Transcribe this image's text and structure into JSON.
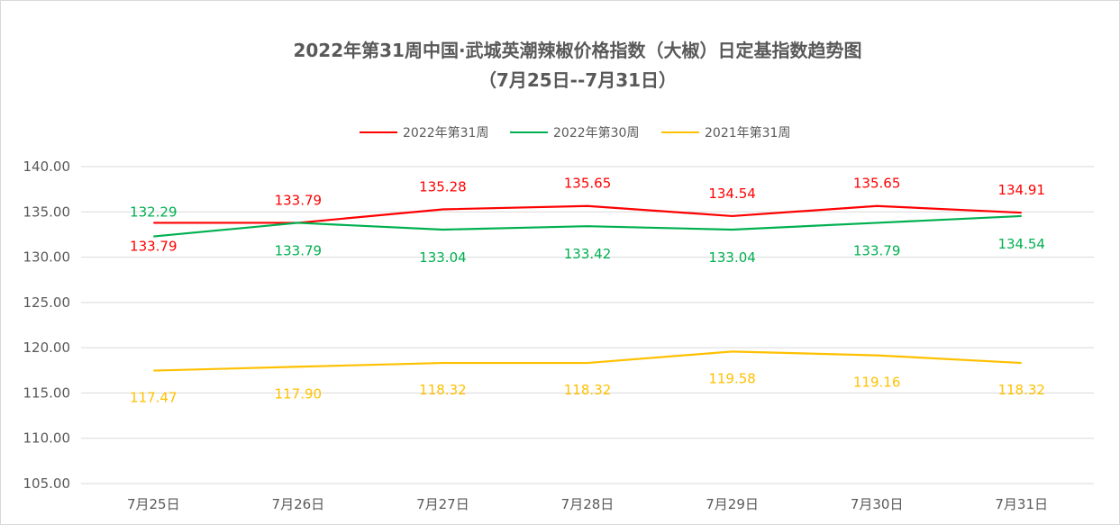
{
  "chart_data": {
    "type": "line",
    "title": "2022年第31周中国·武城英潮辣椒价格指数（大椒）日定基指数趋势图",
    "subtitle": "（7月25日--7月31日）",
    "categories": [
      "7月25日",
      "7月26日",
      "7月27日",
      "7月28日",
      "7月29日",
      "7月30日",
      "7月31日"
    ],
    "ylim": [
      105,
      140
    ],
    "ytick_labels": [
      "140.00",
      "135.00",
      "130.00",
      "125.00",
      "120.00",
      "115.00",
      "110.00",
      "105.00"
    ],
    "grid": true,
    "legend_position": "top",
    "series": [
      {
        "name": "2022年第31周",
        "color": "#ff0000",
        "values": [
          133.79,
          133.79,
          135.28,
          135.65,
          134.54,
          135.65,
          134.91
        ],
        "labels": [
          "133.79",
          "133.79",
          "135.28",
          "135.65",
          "134.54",
          "135.65",
          "134.91"
        ]
      },
      {
        "name": "2022年第30周",
        "color": "#00b050",
        "values": [
          132.29,
          133.79,
          133.04,
          133.42,
          133.04,
          133.79,
          134.54
        ],
        "labels": [
          "132.29",
          "133.79",
          "133.04",
          "133.42",
          "133.04",
          "133.79",
          "134.54"
        ]
      },
      {
        "name": "2021年第31周",
        "color": "#ffc000",
        "values": [
          117.47,
          117.9,
          118.32,
          118.32,
          119.58,
          119.16,
          118.32
        ],
        "labels": [
          "117.47",
          "117.90",
          "118.32",
          "118.32",
          "119.58",
          "119.16",
          "118.32"
        ]
      }
    ]
  }
}
